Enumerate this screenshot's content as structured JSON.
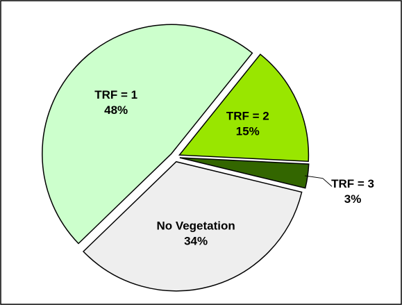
{
  "chart_data": {
    "type": "pie",
    "categories": [
      "TRF = 1",
      "TRF = 2",
      "TRF = 3",
      "No Vegetation"
    ],
    "values": [
      48,
      15,
      3,
      34
    ],
    "value_labels": [
      "48%",
      "15%",
      "3%",
      "34%"
    ],
    "colors": [
      "#ccffcc",
      "#99e600",
      "#336600",
      "#eeeeee"
    ]
  }
}
